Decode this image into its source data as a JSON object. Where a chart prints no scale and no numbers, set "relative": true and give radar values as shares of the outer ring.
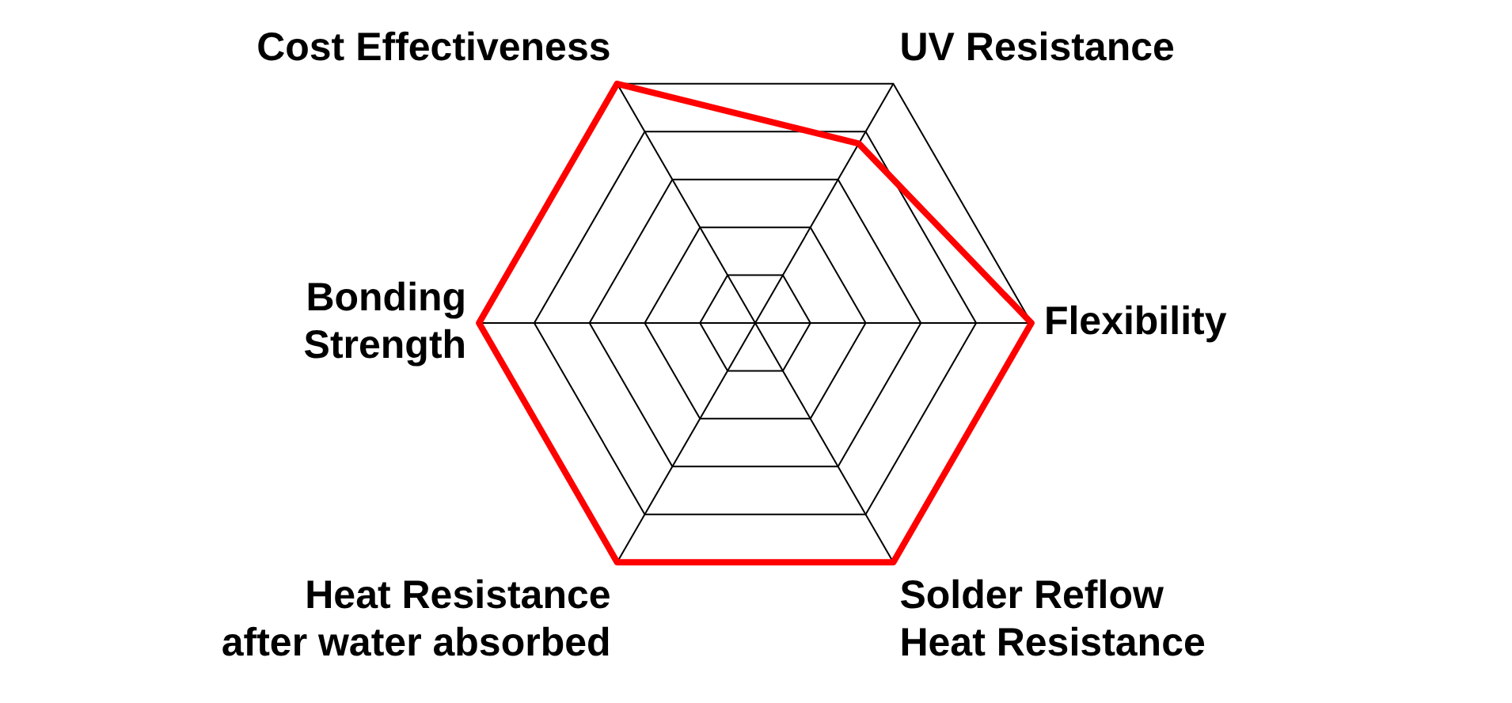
{
  "chart_data": {
    "type": "radar",
    "categories": [
      "Cost Effectiveness",
      "UV Resistance",
      "Flexibility",
      "Solder Reflow Heat Resistance",
      "Heat Resistance after water absorbed",
      "Bonding Strength"
    ],
    "series": [
      {
        "color": "#ff0000",
        "values": [
          1,
          0.75,
          1,
          1,
          1,
          1
        ]
      }
    ],
    "relative": true,
    "legend": false,
    "marker": "none"
  }
}
